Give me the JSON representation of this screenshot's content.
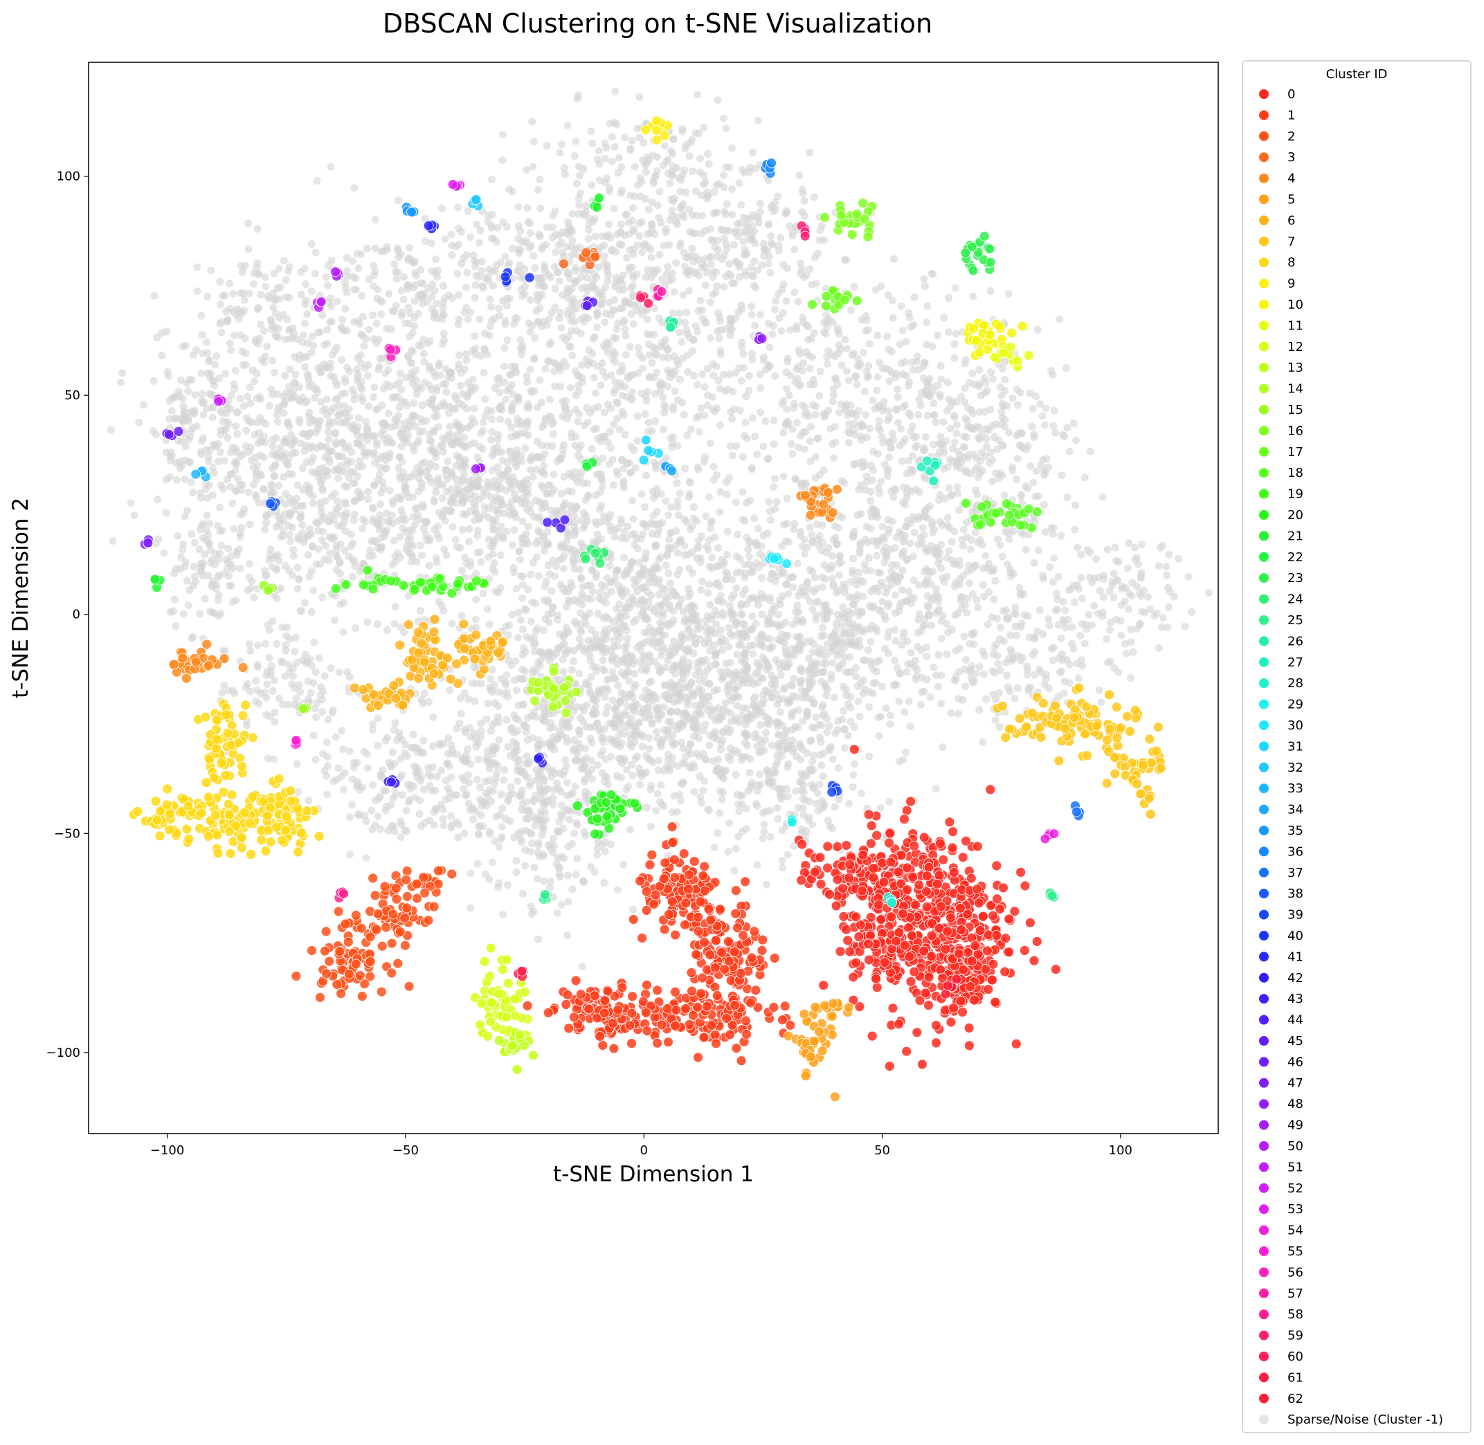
{
  "chart_data": {
    "type": "scatter",
    "title": "DBSCAN Clustering on t-SNE Visualization",
    "xlabel": "t-SNE Dimension 1",
    "ylabel": "t-SNE Dimension 2",
    "xlim": [
      -116.5,
      120.5
    ],
    "ylim": [
      -118.5,
      126
    ],
    "xticks": [
      -100,
      -50,
      0,
      50,
      100
    ],
    "yticks": [
      -100,
      -50,
      0,
      50,
      100
    ],
    "grid": false,
    "legend": {
      "title": "Cluster ID",
      "placement": "outside-right",
      "entries": [
        "0",
        "1",
        "2",
        "3",
        "4",
        "5",
        "6",
        "7",
        "8",
        "9",
        "10",
        "11",
        "12",
        "13",
        "14",
        "15",
        "16",
        "17",
        "18",
        "19",
        "20",
        "21",
        "22",
        "23",
        "24",
        "25",
        "26",
        "27",
        "28",
        "29",
        "30",
        "31",
        "32",
        "33",
        "34",
        "35",
        "36",
        "37",
        "38",
        "39",
        "40",
        "41",
        "42",
        "43",
        "44",
        "45",
        "46",
        "47",
        "48",
        "49",
        "50",
        "51",
        "52",
        "53",
        "54",
        "55",
        "56",
        "57",
        "58",
        "59",
        "60",
        "61",
        "62",
        "Sparse/Noise (Cluster -1)"
      ]
    },
    "noise_color": "#d3d3d3",
    "noise_regions": [
      [
        0,
        0,
        45,
        40
      ],
      [
        0,
        60,
        40,
        35
      ],
      [
        0,
        -10,
        40,
        30
      ],
      [
        -40,
        40,
        30,
        25
      ],
      [
        -60,
        50,
        25,
        25
      ],
      [
        -80,
        30,
        22,
        30
      ],
      [
        -60,
        20,
        25,
        20
      ],
      [
        -30,
        25,
        25,
        20
      ],
      [
        50,
        50,
        30,
        25
      ],
      [
        70,
        40,
        20,
        20
      ],
      [
        60,
        10,
        30,
        25
      ],
      [
        40,
        0,
        25,
        25
      ],
      [
        20,
        -25,
        30,
        20
      ],
      [
        -10,
        -30,
        25,
        20
      ],
      [
        0,
        100,
        25,
        15
      ],
      [
        -20,
        80,
        25,
        15
      ],
      [
        -45,
        75,
        20,
        15
      ],
      [
        20,
        85,
        20,
        15
      ],
      [
        -80,
        70,
        15,
        15
      ],
      [
        -95,
        45,
        12,
        15
      ],
      [
        100,
        5,
        15,
        12
      ],
      [
        80,
        -10,
        20,
        15
      ],
      [
        -35,
        -35,
        15,
        20
      ],
      [
        -20,
        -50,
        15,
        20
      ],
      [
        -55,
        -40,
        15,
        15
      ],
      [
        30,
        -40,
        15,
        20
      ],
      [
        -75,
        -15,
        15,
        15
      ],
      [
        -90,
        10,
        10,
        12
      ]
    ],
    "clusters": [
      {
        "id": 0,
        "color": "#ff2a20",
        "regions": [
          [
            60,
            -70,
            16,
            22
          ],
          [
            45,
            -60,
            12,
            8
          ],
          [
            50,
            -75,
            8,
            8
          ],
          [
            68,
            -80,
            6,
            12
          ]
        ]
      },
      {
        "id": 1,
        "color": "#ff3d1a",
        "regions": [
          [
            5,
            -92,
            20,
            6
          ],
          [
            18,
            -80,
            8,
            14
          ],
          [
            8,
            -65,
            10,
            10
          ],
          [
            -10,
            -90,
            8,
            6
          ]
        ]
      },
      {
        "id": 2,
        "color": "#ff5018",
        "regions": [
          [
            -62,
            -78,
            8,
            8
          ],
          [
            -52,
            -68,
            6,
            8
          ],
          [
            -45,
            -62,
            4,
            4
          ]
        ]
      },
      {
        "id": 3,
        "color": "#ff6a1c",
        "regions": [
          [
            -12,
            82,
            4,
            2
          ]
        ]
      },
      {
        "id": 4,
        "color": "#ff8a1c",
        "regions": [
          [
            -95,
            -11,
            8,
            3
          ],
          [
            37,
            25,
            4,
            5
          ]
        ]
      },
      {
        "id": 5,
        "color": "#ffa21a",
        "regions": [
          [
            35,
            -98,
            4,
            8
          ],
          [
            40,
            -90,
            5,
            2
          ]
        ]
      },
      {
        "id": 6,
        "color": "#ffb31a",
        "regions": [
          [
            -55,
            -19,
            7,
            3
          ],
          [
            -45,
            -10,
            5,
            8
          ],
          [
            -35,
            -8,
            8,
            5
          ]
        ]
      },
      {
        "id": 7,
        "color": "#ffc718",
        "regions": [
          [
            90,
            -25,
            14,
            6
          ],
          [
            103,
            -35,
            6,
            4
          ],
          [
            105,
            -43,
            2,
            3
          ]
        ]
      },
      {
        "id": 8,
        "color": "#ffd812",
        "regions": [
          [
            -98,
            -46,
            8,
            5
          ],
          [
            -85,
            -48,
            10,
            6
          ],
          [
            -75,
            -45,
            6,
            8
          ],
          [
            -88,
            -30,
            5,
            10
          ]
        ]
      },
      {
        "id": 9,
        "color": "#ffee10",
        "regions": [
          [
            4,
            111,
            4,
            2
          ]
        ]
      },
      {
        "id": 10,
        "color": "#f5f508",
        "regions": [
          [
            72,
            63,
            6,
            4
          ]
        ]
      },
      {
        "id": 11,
        "color": "#e6ff10",
        "regions": [
          [
            77,
            59,
            4,
            2
          ]
        ]
      },
      {
        "id": 12,
        "color": "#d6ff18",
        "regions": [
          [
            -30,
            -88,
            5,
            10
          ]
        ]
      },
      {
        "id": 13,
        "color": "#c2ff14",
        "regions": [
          [
            -27,
            -98,
            4,
            4
          ]
        ]
      },
      {
        "id": 14,
        "color": "#b0ff20",
        "regions": [
          [
            -19,
            -17,
            5,
            5
          ]
        ]
      },
      {
        "id": 15,
        "color": "#98ff20",
        "regions": [
          [
            -79,
            6,
            1,
            1
          ],
          [
            -71,
            -22,
            1,
            1
          ]
        ]
      },
      {
        "id": 16,
        "color": "#80ff20",
        "regions": [
          [
            44,
            90,
            5,
            4
          ]
        ]
      },
      {
        "id": 17,
        "color": "#6cff1c",
        "regions": [
          [
            40,
            72,
            4,
            3
          ]
        ]
      },
      {
        "id": 18,
        "color": "#58ff20",
        "regions": [
          [
            75,
            23,
            8,
            3
          ]
        ]
      },
      {
        "id": 19,
        "color": "#40ff18",
        "regions": [
          [
            -48,
            7,
            16,
            2
          ]
        ]
      },
      {
        "id": 20,
        "color": "#28f51c",
        "regions": [
          [
            -8,
            -45,
            6,
            5
          ]
        ]
      },
      {
        "id": 21,
        "color": "#20f530",
        "regions": [
          [
            -102,
            8,
            1,
            2
          ],
          [
            -10,
            94,
            1,
            2
          ]
        ]
      },
      {
        "id": 22,
        "color": "#20f540",
        "regions": [
          [
            -12,
            34,
            1,
            1
          ]
        ]
      },
      {
        "id": 23,
        "color": "#30f050",
        "regions": [
          [
            70,
            82,
            4,
            4
          ]
        ]
      },
      {
        "id": 24,
        "color": "#30f070",
        "regions": [
          [
            -10,
            14,
            4,
            2
          ]
        ]
      },
      {
        "id": 25,
        "color": "#30f090",
        "regions": [
          [
            85,
            -64,
            1,
            1
          ],
          [
            -21,
            -65,
            1,
            1
          ]
        ]
      },
      {
        "id": 26,
        "color": "#20f0a0",
        "regions": [
          [
            5,
            65,
            2,
            2
          ]
        ]
      },
      {
        "id": 27,
        "color": "#20f0c0",
        "regions": [
          [
            60,
            34,
            2,
            3
          ]
        ]
      },
      {
        "id": 28,
        "color": "#20f0d0",
        "regions": [
          [
            52,
            -66,
            1,
            1
          ]
        ]
      },
      {
        "id": 29,
        "color": "#20f0e8",
        "regions": [
          [
            31,
            -47,
            1,
            1
          ]
        ]
      },
      {
        "id": 30,
        "color": "#20e8ff",
        "regions": [
          [
            28,
            12,
            3,
            2
          ]
        ]
      },
      {
        "id": 31,
        "color": "#20d8ff",
        "regions": [
          [
            1,
            37,
            2,
            2
          ]
        ]
      },
      {
        "id": 32,
        "color": "#20c8ff",
        "regions": [
          [
            -35,
            94,
            1,
            1
          ]
        ]
      },
      {
        "id": 33,
        "color": "#20b8ff",
        "regions": [
          [
            -94,
            32,
            2,
            1
          ]
        ]
      },
      {
        "id": 34,
        "color": "#20a8ff",
        "regions": [
          [
            5,
            33,
            1,
            1
          ]
        ]
      },
      {
        "id": 35,
        "color": "#1a98ff",
        "regions": [
          [
            -50,
            92,
            2,
            1
          ]
        ]
      },
      {
        "id": 36,
        "color": "#1a88ff",
        "regions": [
          [
            26,
            102,
            2,
            2
          ]
        ]
      },
      {
        "id": 37,
        "color": "#1a74ff",
        "regions": [
          [
            91,
            -45,
            1,
            1
          ]
        ]
      },
      {
        "id": 38,
        "color": "#1a5cff",
        "regions": [
          [
            -78,
            25,
            1,
            1
          ]
        ]
      },
      {
        "id": 39,
        "color": "#1a4aff",
        "regions": [
          [
            40,
            -40,
            1,
            1
          ]
        ]
      },
      {
        "id": 40,
        "color": "#1a38ff",
        "regions": [
          [
            -28,
            77,
            4,
            1
          ]
        ]
      },
      {
        "id": 41,
        "color": "#2a28ff",
        "regions": [
          [
            -45,
            88,
            1,
            1
          ]
        ]
      },
      {
        "id": 42,
        "color": "#3020ff",
        "regions": [
          [
            -22,
            -33,
            1,
            1
          ]
        ]
      },
      {
        "id": 43,
        "color": "#4020ff",
        "regions": [
          [
            -53,
            -38,
            1,
            1
          ]
        ]
      },
      {
        "id": 44,
        "color": "#5020ff",
        "regions": [
          [
            -19,
            21,
            3,
            1
          ]
        ]
      },
      {
        "id": 45,
        "color": "#6020ff",
        "regions": [
          [
            -11,
            71,
            2,
            1
          ]
        ]
      },
      {
        "id": 46,
        "color": "#7020ff",
        "regions": [
          [
            -99,
            41,
            2,
            1
          ]
        ]
      },
      {
        "id": 47,
        "color": "#8020ff",
        "regions": [
          [
            -104,
            16,
            1,
            1
          ]
        ]
      },
      {
        "id": 48,
        "color": "#9020ff",
        "regions": [
          [
            24,
            63,
            1,
            1
          ]
        ]
      },
      {
        "id": 49,
        "color": "#a020ff",
        "regions": [
          [
            -35,
            33,
            1,
            1
          ]
        ]
      },
      {
        "id": 50,
        "color": "#b020ff",
        "regions": [
          [
            -64,
            78,
            1,
            1
          ]
        ]
      },
      {
        "id": 51,
        "color": "#c020ff",
        "regions": [
          [
            -68,
            71,
            1,
            1
          ]
        ]
      },
      {
        "id": 52,
        "color": "#d020ff",
        "regions": [
          [
            -89,
            49,
            1,
            1
          ]
        ]
      },
      {
        "id": 53,
        "color": "#e020f0",
        "regions": [
          [
            -39,
            98,
            1,
            1
          ]
        ]
      },
      {
        "id": 54,
        "color": "#f020e0",
        "regions": [
          [
            85,
            -50,
            1,
            1
          ]
        ]
      },
      {
        "id": 55,
        "color": "#ff20d0",
        "regions": [
          [
            -73,
            -29,
            1,
            1
          ]
        ]
      },
      {
        "id": 56,
        "color": "#ff20c0",
        "regions": [
          [
            -53,
            60,
            1,
            1
          ]
        ]
      },
      {
        "id": 57,
        "color": "#ff20a8",
        "regions": [
          [
            3,
            73,
            1,
            1
          ]
        ]
      },
      {
        "id": 58,
        "color": "#ff2090",
        "regions": [
          [
            -63,
            -64,
            1,
            1
          ]
        ]
      },
      {
        "id": 59,
        "color": "#ff2078",
        "regions": [
          [
            34,
            88,
            1,
            1
          ]
        ]
      },
      {
        "id": 60,
        "color": "#ff2060",
        "regions": [
          [
            0,
            72,
            1,
            1
          ]
        ]
      },
      {
        "id": 61,
        "color": "#ff2048",
        "regions": [
          [
            -26,
            -82,
            1,
            1
          ]
        ]
      },
      {
        "id": 62,
        "color": "#ff2038",
        "regions": [
          [
            64,
            -85,
            2,
            2
          ]
        ]
      }
    ]
  }
}
